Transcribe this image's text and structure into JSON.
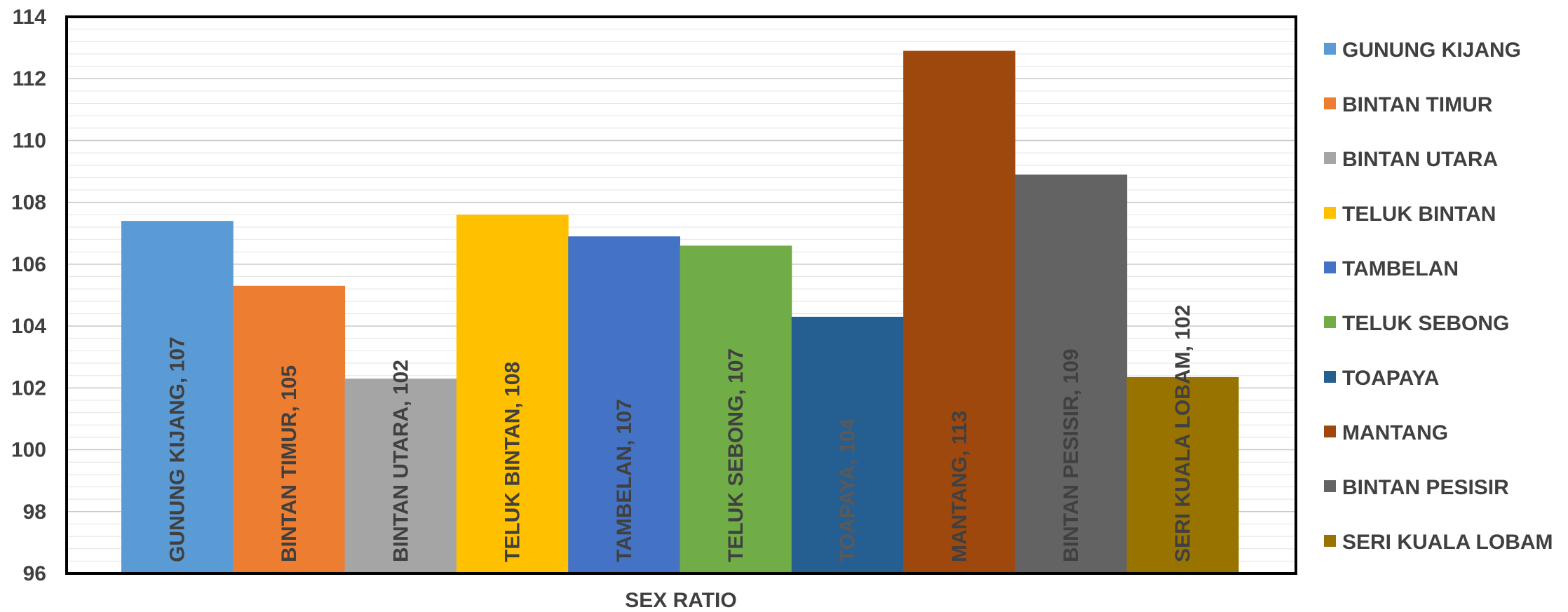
{
  "chart_data": {
    "type": "bar",
    "xlabel": "SEX RATIO",
    "ylim": [
      96,
      114
    ],
    "yticks": [
      96,
      98,
      100,
      102,
      104,
      106,
      108,
      110,
      112,
      114
    ],
    "grid": true,
    "legend_position": "right",
    "series": [
      {
        "name": "GUNUNG KIJANG",
        "value": 107.4,
        "label": "GUNUNG KIJANG, 107",
        "color": "#5B9BD5"
      },
      {
        "name": "BINTAN TIMUR",
        "value": 105.3,
        "label": "BINTAN TIMUR, 105",
        "color": "#ED7D31"
      },
      {
        "name": "BINTAN UTARA",
        "value": 102.3,
        "label": "BINTAN UTARA, 102",
        "color": "#A5A5A5"
      },
      {
        "name": "TELUK BINTAN",
        "value": 107.6,
        "label": "TELUK BINTAN, 108",
        "color": "#FFC000"
      },
      {
        "name": "TAMBELAN",
        "value": 106.9,
        "label": "TAMBELAN, 107",
        "color": "#4472C4"
      },
      {
        "name": "TELUK SEBONG",
        "value": 106.6,
        "label": "TELUK SEBONG, 107",
        "color": "#70AD47"
      },
      {
        "name": "TOAPAYA",
        "value": 104.3,
        "label": "TOAPAYA, 104",
        "color": "#255E91"
      },
      {
        "name": "MANTANG",
        "value": 112.9,
        "label": "MANTANG, 113",
        "color": "#9E480E"
      },
      {
        "name": "BINTAN PESISIR",
        "value": 108.9,
        "label": "BINTAN PESISIR, 109",
        "color": "#636363"
      },
      {
        "name": "SERI KUALA LOBAM",
        "value": 102.35,
        "label": "SERI KUALA LOBAM, 102",
        "color": "#997300"
      }
    ]
  }
}
